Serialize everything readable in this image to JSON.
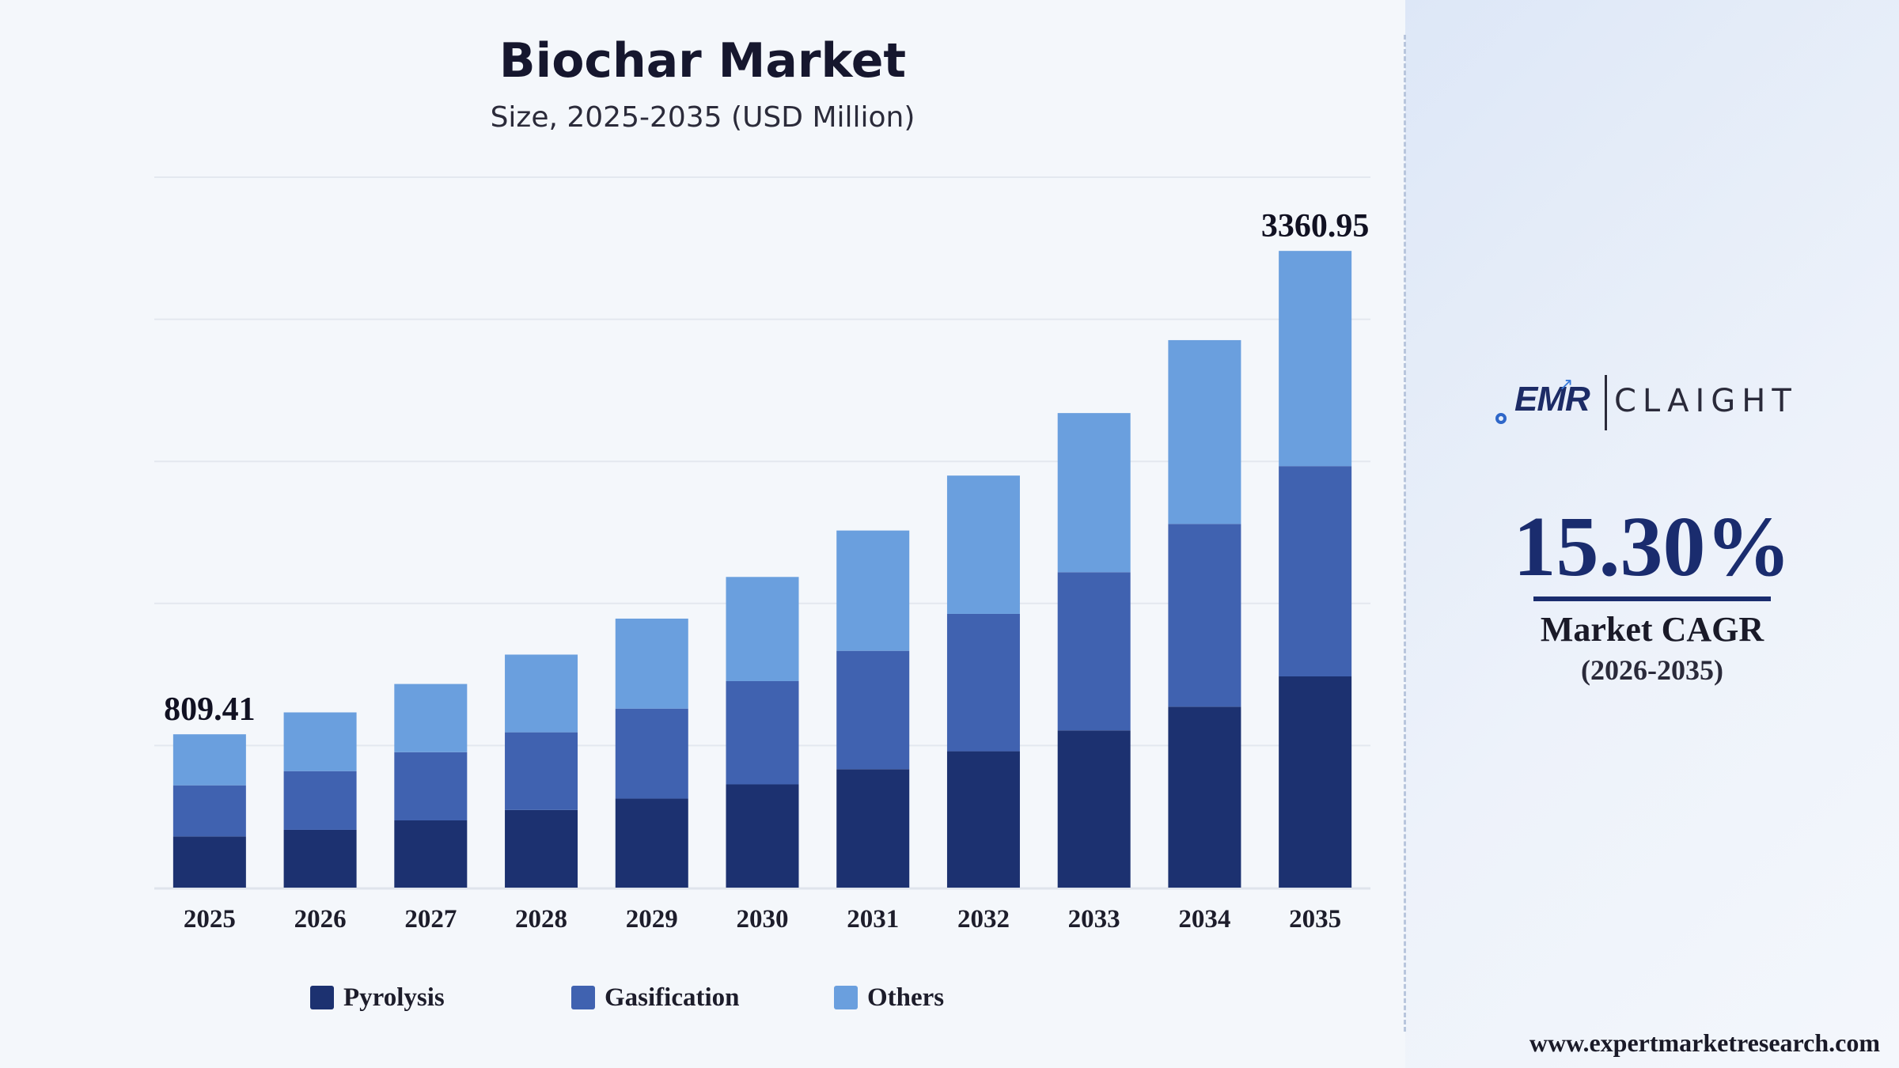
{
  "chart_data": {
    "type": "bar",
    "stacked": true,
    "title": "Biochar Market",
    "subtitle": "Size, 2025-2035 (USD Million)",
    "categories": [
      "2025",
      "2026",
      "2027",
      "2028",
      "2029",
      "2030",
      "2031",
      "2032",
      "2033",
      "2034",
      "2035"
    ],
    "series": [
      {
        "name": "Pyrolysis",
        "color": "#1c3170",
        "values": [
          270,
          305,
          355,
          410,
          470,
          545,
          625,
          720,
          830,
          955,
          1115
        ]
      },
      {
        "name": "Gasification",
        "color": "#4062b0",
        "values": [
          270,
          310,
          360,
          410,
          475,
          545,
          625,
          725,
          835,
          965,
          1110
        ]
      },
      {
        "name": "Others",
        "color": "#6a9fde",
        "values": [
          269.41,
          310,
          360,
          410,
          475,
          550,
          635,
          730,
          840,
          970,
          1135.95
        ]
      }
    ],
    "totals": [
      809.41,
      925,
      1075,
      1230,
      1420,
      1640,
      1885,
      2175,
      2505,
      2890,
      3360.95
    ],
    "data_labels": [
      {
        "category": "2025",
        "text": "809.41"
      },
      {
        "category": "2035",
        "text": "3360.95"
      }
    ],
    "ylim": [
      0,
      3750
    ],
    "grid": true,
    "legend_position": "bottom"
  },
  "side_panel": {
    "logo_left": "EMR",
    "logo_right": "CLAIGHT",
    "cagr_value": "15.30%",
    "cagr_label": "Market CAGR",
    "cagr_period": "(2026-2035)",
    "website": "www.expertmarketresearch.com"
  }
}
